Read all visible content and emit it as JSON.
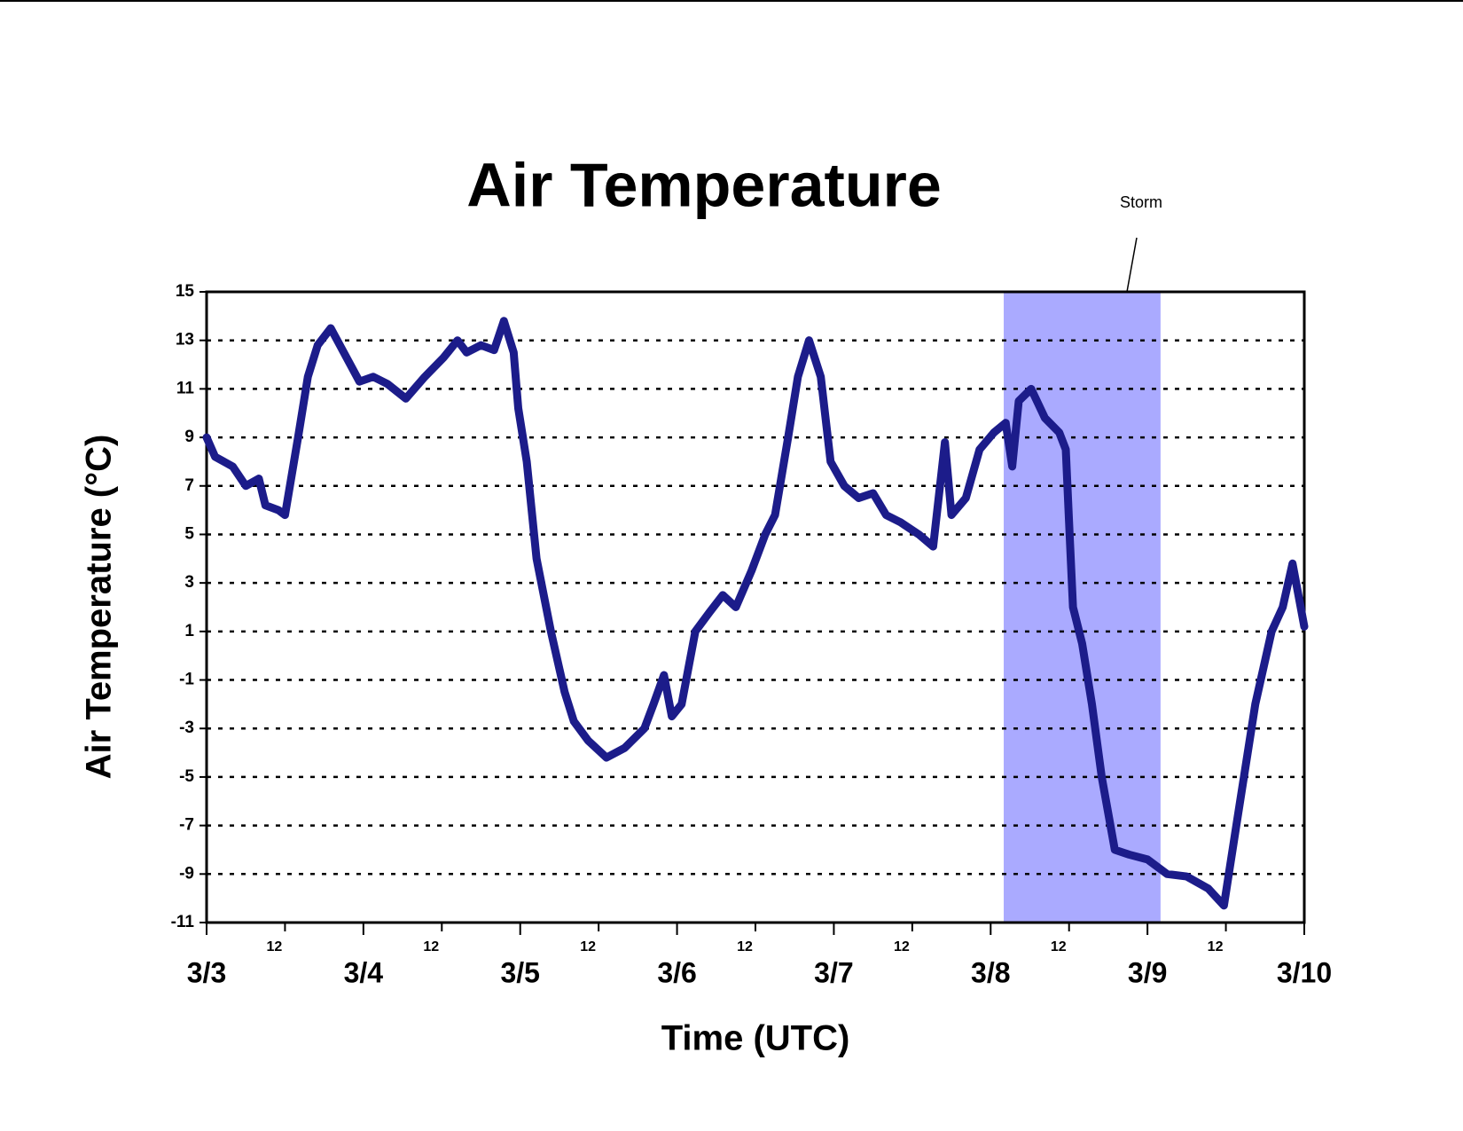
{
  "chart_data": {
    "type": "line",
    "title": "Air Temperature",
    "x_label": "Time (UTC)",
    "y_label": "Air Temperature (°C)",
    "annotation": {
      "text": "Storm",
      "span": [
        122,
        146
      ],
      "color": "#aaaaff"
    },
    "x": [
      0,
      1.3,
      4,
      6,
      8,
      9,
      11,
      12,
      14,
      15.5,
      17,
      19,
      21,
      23.4,
      25.5,
      27.7,
      30.5,
      33.4,
      36.3,
      38.4,
      39.8,
      42,
      44,
      45.5,
      47,
      47.7,
      49,
      50.5,
      52.7,
      54.8,
      56.2,
      58.4,
      61.2,
      64,
      67,
      68.4,
      70,
      71.2,
      72.7,
      74.8,
      77,
      79,
      81,
      83.4,
      85.5,
      87,
      89,
      90.5,
      92.2,
      94,
      95.5,
      97.6,
      99.8,
      102,
      104,
      106.2,
      109,
      111.2,
      113,
      114,
      116.2,
      118.3,
      120.5,
      122.3,
      123.3,
      124.3,
      126.2,
      128.3,
      130.5,
      131.5,
      132,
      132.6,
      134,
      135.5,
      137,
      139,
      141.2,
      144,
      147,
      150,
      153.3,
      155.7,
      157.6,
      160.5,
      163,
      164.7,
      166.2,
      168
    ],
    "series": [
      {
        "name": "Air Temperature",
        "color": "#1c1c8a",
        "values": [
          9,
          8.2,
          7.8,
          7,
          7.3,
          6.2,
          6,
          5.8,
          9,
          11.5,
          12.8,
          13.5,
          12.5,
          11.3,
          11.5,
          11.2,
          10.6,
          11.5,
          12.3,
          13,
          12.5,
          12.8,
          12.6,
          13.8,
          12.5,
          10.2,
          8,
          4,
          1,
          -1.5,
          -2.7,
          -3.5,
          -4.2,
          -3.8,
          -3,
          -2,
          -0.8,
          -2.5,
          -2,
          1,
          1.8,
          2.5,
          2,
          3.5,
          5,
          5.8,
          9,
          11.5,
          13,
          11.5,
          8,
          7,
          6.5,
          6.7,
          5.8,
          5.5,
          5,
          4.5,
          8.8,
          5.8,
          6.5,
          8.5,
          9.2,
          9.6,
          7.8,
          10.5,
          11,
          9.8,
          9.2,
          8.5,
          5.5,
          2,
          0.5,
          -2,
          -5,
          -8,
          -8.2,
          -8.4,
          -9,
          -9.1,
          -9.6,
          -10.3,
          -7,
          -2,
          1,
          2,
          3.8,
          1.2
        ]
      }
    ],
    "xlim": [
      0,
      168
    ],
    "xticks": [
      {
        "value": 0,
        "label": "3/3"
      },
      {
        "value": 12,
        "label": "12"
      },
      {
        "value": 24,
        "label": "3/4"
      },
      {
        "value": 36,
        "label": "12"
      },
      {
        "value": 48,
        "label": "3/5"
      },
      {
        "value": 60,
        "label": "12"
      },
      {
        "value": 72,
        "label": "3/6"
      },
      {
        "value": 84,
        "label": "12"
      },
      {
        "value": 96,
        "label": "3/7"
      },
      {
        "value": 108,
        "label": "12"
      },
      {
        "value": 120,
        "label": "3/8"
      },
      {
        "value": 132,
        "label": "12"
      },
      {
        "value": 144,
        "label": "3/9"
      },
      {
        "value": 156,
        "label": "12"
      },
      {
        "value": 168,
        "label": "3/10"
      }
    ],
    "ylim": [
      -11,
      15
    ],
    "yticks": [
      -11,
      -9,
      -7,
      -5,
      -3,
      -1,
      1,
      3,
      5,
      7,
      9,
      11,
      13,
      15
    ],
    "grid": true
  }
}
